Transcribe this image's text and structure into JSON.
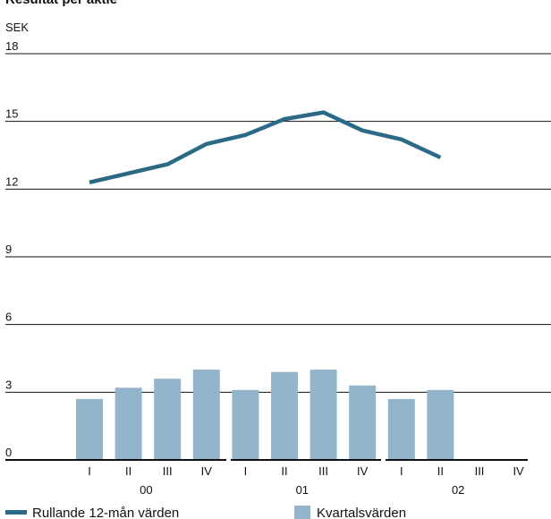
{
  "title": "Resultat per aktie",
  "colors": {
    "line": "#2a6a86",
    "bar": "#93b5cb",
    "grid": "#111111",
    "text": "#111111"
  },
  "chart_data": {
    "type": "bar",
    "title": "Resultat per aktie",
    "ylabel": "SEK",
    "ylim": [
      0,
      18
    ],
    "yticks": [
      0,
      3,
      6,
      9,
      12,
      15,
      18
    ],
    "grid": true,
    "legend_position": "bottom",
    "categories": [
      "I",
      "II",
      "III",
      "IV",
      "I",
      "II",
      "III",
      "IV",
      "I",
      "II",
      "III",
      "IV"
    ],
    "year_groups": [
      {
        "label": "00",
        "categories": [
          "I",
          "II",
          "III",
          "IV"
        ]
      },
      {
        "label": "01",
        "categories": [
          "I",
          "II",
          "III",
          "IV"
        ]
      },
      {
        "label": "02",
        "categories": [
          "I",
          "II",
          "III",
          "IV"
        ]
      }
    ],
    "series": [
      {
        "name": "Kvartalsvärden",
        "type": "bar",
        "values": [
          2.7,
          3.2,
          3.6,
          4.0,
          3.1,
          3.9,
          4.0,
          3.3,
          2.7,
          3.1,
          null,
          null
        ]
      },
      {
        "name": "Rullande 12-mån värden",
        "type": "line",
        "values": [
          12.3,
          12.7,
          13.1,
          14.0,
          14.4,
          15.1,
          15.4,
          14.6,
          14.2,
          13.4,
          null,
          null
        ]
      }
    ]
  },
  "legend": {
    "line_label": "Rullande 12-mån värden",
    "bar_label": "Kvartalsvärden"
  }
}
